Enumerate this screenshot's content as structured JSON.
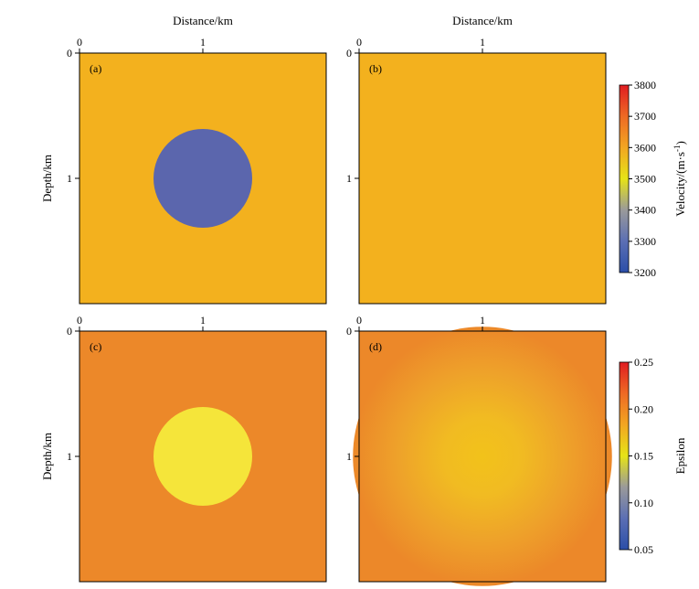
{
  "chart_data": [
    {
      "type": "heatmap",
      "panel_label": "(a)",
      "xlabel": "Distance/km",
      "ylabel": "Depth/km",
      "xlim": [
        0,
        2
      ],
      "ylim": [
        0,
        2
      ],
      "x_ticks": [
        "0",
        "1"
      ],
      "y_ticks": [
        "0",
        "1"
      ],
      "background_value": 3600,
      "anomaly": {
        "shape": "circle",
        "center_km": [
          1.0,
          1.0
        ],
        "radius_km": 0.4,
        "value": 3300,
        "profile": "sharp"
      },
      "colorbar": "velocity"
    },
    {
      "type": "heatmap",
      "panel_label": "(b)",
      "xlabel": "Distance/km",
      "ylabel": "",
      "xlim": [
        0,
        2
      ],
      "ylim": [
        0,
        2
      ],
      "x_ticks": [
        "0",
        "1"
      ],
      "y_ticks": [
        "0",
        "1"
      ],
      "background_value": 3600,
      "anomaly": null,
      "colorbar": "velocity"
    },
    {
      "type": "heatmap",
      "panel_label": "(c)",
      "xlabel": "",
      "ylabel": "Depth/km",
      "xlim": [
        0,
        2
      ],
      "ylim": [
        0,
        2
      ],
      "x_ticks": [
        "0",
        "1"
      ],
      "y_ticks": [
        "0",
        "1"
      ],
      "background_value": 0.2,
      "anomaly": {
        "shape": "circle",
        "center_km": [
          1.0,
          1.0
        ],
        "radius_km": 0.4,
        "value": 0.15,
        "profile": "sharp"
      },
      "colorbar": "epsilon"
    },
    {
      "type": "heatmap",
      "panel_label": "(d)",
      "xlabel": "",
      "ylabel": "",
      "xlim": [
        0,
        2
      ],
      "ylim": [
        0,
        2
      ],
      "x_ticks": [
        "0",
        "1"
      ],
      "y_ticks": [
        "0",
        "1"
      ],
      "background_value": 0.2,
      "anomaly": {
        "shape": "circle",
        "center_km": [
          1.0,
          1.0
        ],
        "radius_km": 1.0,
        "value": 0.165,
        "profile": "smooth"
      },
      "colorbar": "epsilon"
    }
  ],
  "colorbars": {
    "velocity": {
      "label": "Velocity/(m·s",
      "label_sup": "-1",
      "label_close": ")",
      "min": 3200,
      "max": 3800,
      "ticks": [
        "3200",
        "3300",
        "3400",
        "3500",
        "3600",
        "3700",
        "3800"
      ],
      "colormap": [
        "#2b4ea8",
        "#5b6fb4",
        "#9a9a9a",
        "#e6e317",
        "#f2a622",
        "#ee6a24",
        "#e01d22"
      ]
    },
    "epsilon": {
      "label": "Epsilon",
      "min": 0.05,
      "max": 0.25,
      "ticks": [
        "0.05",
        "0.10",
        "0.15",
        "0.20",
        "0.25"
      ],
      "colormap": [
        "#2b4ea8",
        "#5b6fb4",
        "#9a9a9a",
        "#e6e317",
        "#f2a622",
        "#ee6a24",
        "#e01d22"
      ]
    }
  },
  "colors": {
    "velocity_background": "#f3b11e",
    "velocity_anomaly": "#5b66ad",
    "epsilon_background": "#ec8829",
    "epsilon_anomaly": "#f5e53a",
    "epsilon_smooth_center": "#f2c21a"
  }
}
